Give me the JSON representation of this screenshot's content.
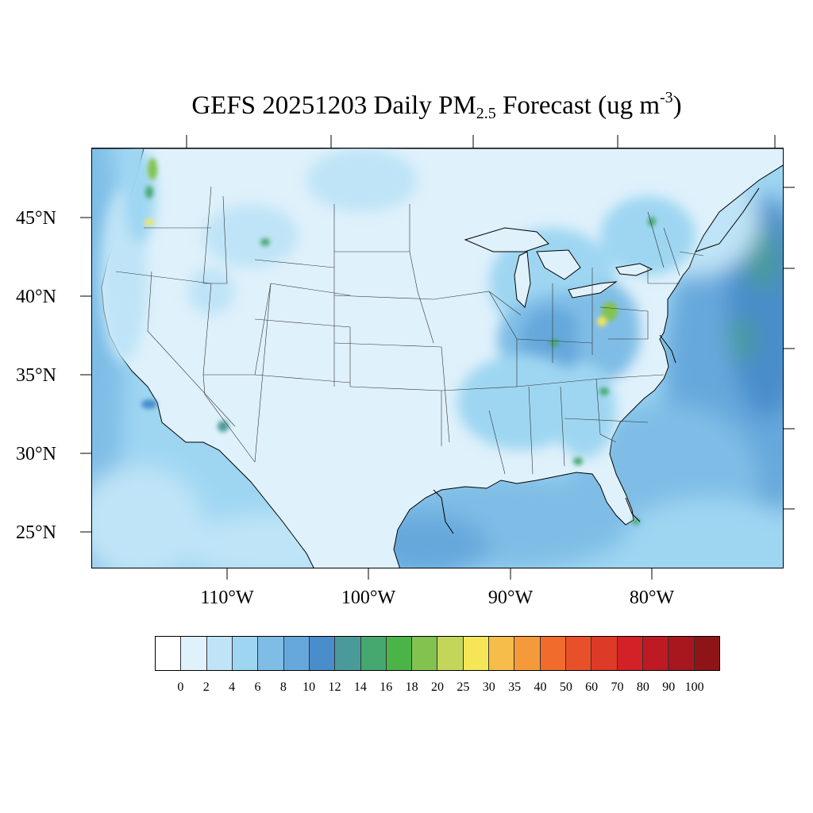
{
  "title": {
    "main": "GEFS 20251203 Daily PM",
    "sub": "2.5",
    "mid": " Forecast (ug m",
    "sup": "-3",
    "end": ")"
  },
  "lat_labels": [
    "45°N",
    "40°N",
    "35°N",
    "30°N",
    "25°N"
  ],
  "lon_labels": [
    "110°W",
    "100°W",
    "90°W",
    "80°W"
  ],
  "colorbar": {
    "labels": [
      "0",
      "2",
      "4",
      "6",
      "8",
      "10",
      "12",
      "14",
      "16",
      "18",
      "20",
      "25",
      "30",
      "35",
      "40",
      "50",
      "60",
      "70",
      "80",
      "90",
      "100"
    ],
    "colors": [
      "#ffffff",
      "#dff1fb",
      "#bfe4f7",
      "#9ed6f2",
      "#7fbde6",
      "#66a8dc",
      "#4a8dcb",
      "#4a9a9a",
      "#46a86e",
      "#4bb446",
      "#82c350",
      "#c3d65a",
      "#f5e658",
      "#f7bd4a",
      "#f59a3a",
      "#f06b2c",
      "#e8502a",
      "#de3a28",
      "#d42128",
      "#bd1a24",
      "#a8161e",
      "#8f1418"
    ]
  },
  "map": {
    "ocean_color": "#9ed0ee",
    "land_base": "#dff1fb"
  }
}
